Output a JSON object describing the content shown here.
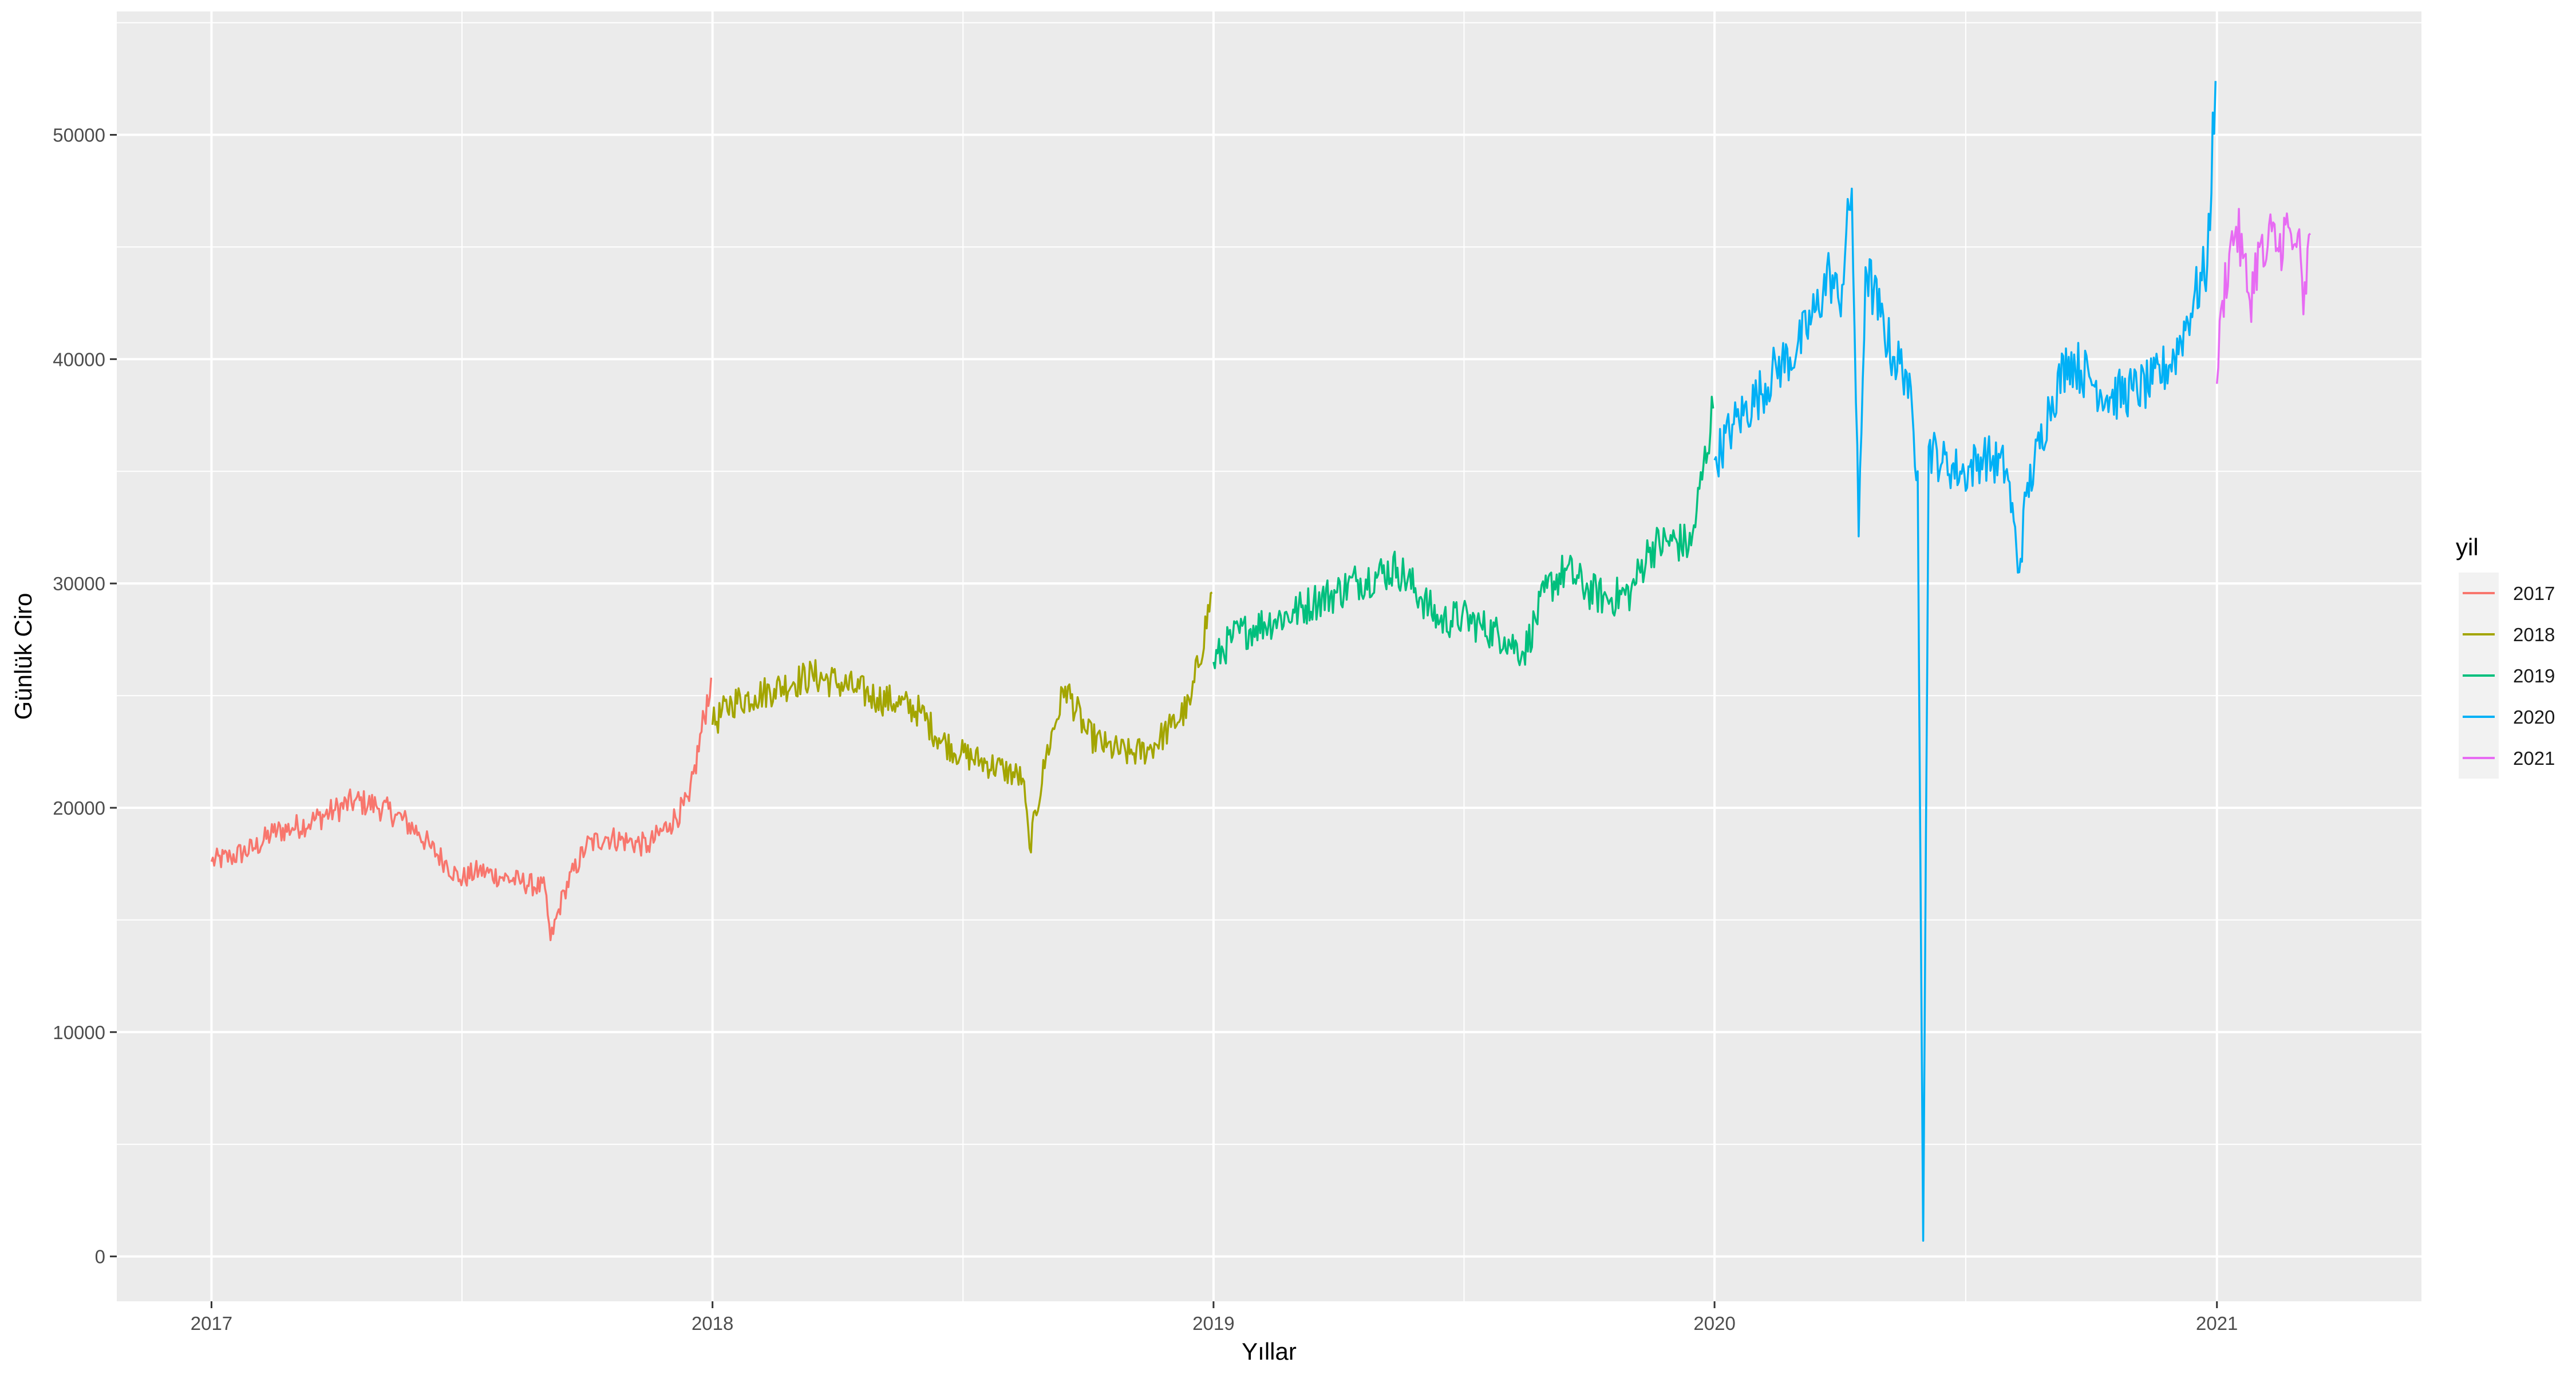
{
  "chart_data": {
    "type": "line",
    "title": "",
    "xlabel": "Yıllar",
    "ylabel": "Günlük Ciro",
    "xlim": [
      "2016-10-24",
      "2021-05-30"
    ],
    "ylim": [
      -2000,
      55500
    ],
    "x_ticks": [
      "2017-01-01",
      "2018-01-01",
      "2019-01-01",
      "2020-01-01",
      "2021-01-01"
    ],
    "x_tick_labels": [
      "2017",
      "2018",
      "2019",
      "2020",
      "2021"
    ],
    "y_ticks": [
      0,
      10000,
      20000,
      30000,
      40000,
      50000
    ],
    "y_tick_labels": [
      "0",
      "10000",
      "20000",
      "30000",
      "40000",
      "50000"
    ],
    "grid": true,
    "legend": {
      "title": "yil",
      "position": "right"
    },
    "series": [
      {
        "name": "2017",
        "color": "#F8766D",
        "x": [
          "2017-01-01",
          "2017-01-15",
          "2017-02-01",
          "2017-02-15",
          "2017-03-01",
          "2017-03-15",
          "2017-04-01",
          "2017-04-15",
          "2017-05-01",
          "2017-05-15",
          "2017-06-01",
          "2017-06-10",
          "2017-06-20",
          "2017-07-01",
          "2017-07-15",
          "2017-08-01",
          "2017-08-15",
          "2017-09-01",
          "2017-09-05",
          "2017-09-15",
          "2017-10-01",
          "2017-10-15",
          "2017-11-01",
          "2017-11-15",
          "2017-12-01",
          "2017-12-15",
          "2017-12-31"
        ],
        "y": [
          17600,
          17800,
          18200,
          18900,
          19100,
          19400,
          19900,
          20300,
          20100,
          19700,
          18900,
          18200,
          17600,
          16800,
          17200,
          16900,
          16700,
          16400,
          14100,
          16300,
          18300,
          18700,
          18500,
          18300,
          19300,
          20300,
          25800
        ]
      },
      {
        "name": "2018",
        "color": "#A3A500",
        "x": [
          "2018-01-01",
          "2018-01-15",
          "2018-02-01",
          "2018-02-15",
          "2018-03-01",
          "2018-03-15",
          "2018-04-01",
          "2018-04-15",
          "2018-05-01",
          "2018-05-15",
          "2018-06-01",
          "2018-06-15",
          "2018-07-01",
          "2018-07-15",
          "2018-08-01",
          "2018-08-15",
          "2018-08-20",
          "2018-09-01",
          "2018-09-15",
          "2018-10-01",
          "2018-10-15",
          "2018-11-01",
          "2018-11-15",
          "2018-12-01",
          "2018-12-15",
          "2018-12-31"
        ],
        "y": [
          23700,
          24700,
          25000,
          25300,
          25600,
          25900,
          25600,
          25300,
          24900,
          24700,
          24300,
          23100,
          22400,
          22100,
          21700,
          21300,
          18200,
          22300,
          25400,
          23300,
          22700,
          22400,
          22600,
          23600,
          24600,
          29600
        ]
      },
      {
        "name": "2019",
        "color": "#00BF7D",
        "x": [
          "2019-01-01",
          "2019-01-15",
          "2019-02-01",
          "2019-02-15",
          "2019-03-01",
          "2019-03-15",
          "2019-04-01",
          "2019-04-15",
          "2019-05-01",
          "2019-05-15",
          "2019-06-01",
          "2019-06-15",
          "2019-07-01",
          "2019-07-15",
          "2019-08-01",
          "2019-08-15",
          "2019-09-01",
          "2019-09-15",
          "2019-10-01",
          "2019-10-15",
          "2019-11-01",
          "2019-11-15",
          "2019-12-01",
          "2019-12-15",
          "2019-12-31"
        ],
        "y": [
          26500,
          27600,
          28100,
          28400,
          28700,
          29200,
          29600,
          30100,
          30400,
          30700,
          29400,
          28300,
          28500,
          28100,
          27600,
          26900,
          29800,
          30600,
          29700,
          29300,
          29600,
          31600,
          31900,
          31700,
          37800
        ]
      },
      {
        "name": "2020",
        "color": "#00B0F6",
        "x": [
          "2020-01-01",
          "2020-01-15",
          "2020-02-01",
          "2020-02-15",
          "2020-03-01",
          "2020-03-15",
          "2020-03-25",
          "2020-04-01",
          "2020-04-10",
          "2020-04-15",
          "2020-04-20",
          "2020-05-01",
          "2020-05-10",
          "2020-05-20",
          "2020-05-28",
          "2020-06-01",
          "2020-06-05",
          "2020-06-15",
          "2020-07-01",
          "2020-07-15",
          "2020-08-01",
          "2020-08-10",
          "2020-08-15",
          "2020-09-01",
          "2020-09-15",
          "2020-10-01",
          "2020-10-15",
          "2020-11-01",
          "2020-11-15",
          "2020-12-01",
          "2020-12-15",
          "2020-12-25",
          "2020-12-31"
        ],
        "y": [
          35500,
          37100,
          38300,
          39600,
          40400,
          42200,
          43900,
          42400,
          47600,
          32100,
          44100,
          41900,
          40100,
          39400,
          35000,
          700,
          36100,
          35400,
          34900,
          35700,
          35100,
          30500,
          33900,
          37900,
          40100,
          39100,
          38300,
          38600,
          38900,
          40100,
          42600,
          44200,
          52400
        ]
      },
      {
        "name": "2021",
        "color": "#E76BF3",
        "x": [
          "2021-01-01",
          "2021-01-05",
          "2021-01-10",
          "2021-01-15",
          "2021-01-20",
          "2021-01-25",
          "2021-02-01",
          "2021-02-05",
          "2021-02-10",
          "2021-02-15",
          "2021-02-20",
          "2021-02-25",
          "2021-03-01",
          "2021-03-05",
          "2021-03-10"
        ],
        "y": [
          38900,
          42600,
          44700,
          45900,
          44500,
          42600,
          45000,
          44200,
          45700,
          44800,
          46000,
          44900,
          45600,
          42000,
          45600
        ]
      }
    ]
  }
}
